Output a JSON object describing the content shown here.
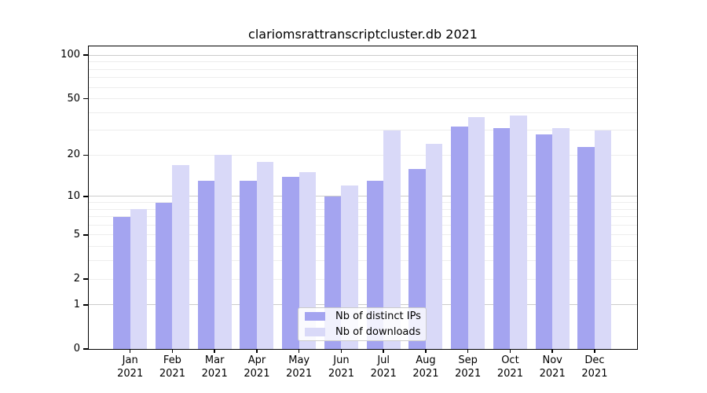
{
  "page": {
    "background": "#ffffff"
  },
  "chart_data": {
    "type": "bar",
    "title": "clariomsrattranscriptcluster.db 2021",
    "categories": [
      "Jan 2021",
      "Feb 2021",
      "Mar 2021",
      "Apr 2021",
      "May 2021",
      "Jun 2021",
      "Jul 2021",
      "Aug 2021",
      "Sep 2021",
      "Oct 2021",
      "Nov 2021",
      "Dec 2021"
    ],
    "series": [
      {
        "name": "Nb of distinct IPs",
        "color": "#a4a4f0",
        "values": [
          7,
          9,
          13,
          13,
          14,
          10,
          13,
          16,
          32,
          31,
          28,
          23
        ]
      },
      {
        "name": "Nb of downloads",
        "color": "#d9d9f8",
        "values": [
          8,
          17,
          20,
          18,
          15,
          12,
          30,
          24,
          37,
          38,
          31,
          30
        ]
      }
    ],
    "xlabel": "",
    "ylabel": "",
    "yscale": "log10(value+1)",
    "ylim": [
      0,
      116
    ],
    "yticks": [
      0,
      1,
      2,
      5,
      10,
      20,
      50,
      100
    ],
    "major_gridlines": [
      1,
      10,
      100
    ],
    "minor_gridlines": [
      2,
      3,
      4,
      5,
      6,
      7,
      8,
      9,
      20,
      30,
      40,
      50,
      60,
      70,
      80,
      90
    ],
    "grid": true,
    "legend_position": "lower center"
  },
  "colors": {
    "axis": "#000000",
    "text": "#000000",
    "major_grid": "#cccccc",
    "minor_grid": "#ededed",
    "legend_border": "#cccccc"
  }
}
